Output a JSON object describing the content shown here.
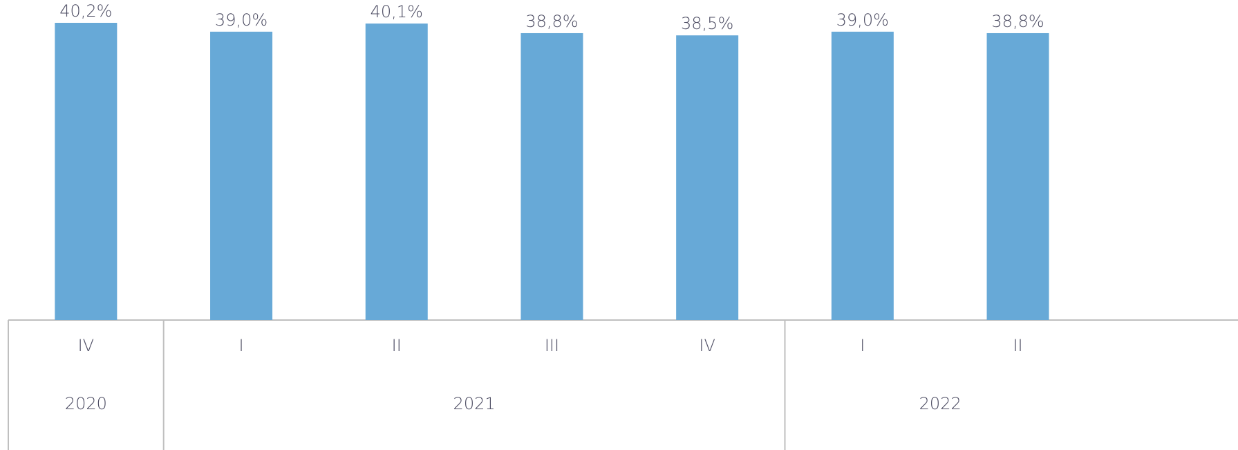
{
  "chart_data": {
    "type": "bar",
    "groups": [
      {
        "label": "2020",
        "categories": [
          "IV"
        ]
      },
      {
        "label": "2021",
        "categories": [
          "I",
          "II",
          "III",
          "IV"
        ]
      },
      {
        "label": "2022",
        "categories": [
          "I",
          "II"
        ]
      }
    ],
    "values": [
      40.2,
      39.0,
      40.1,
      38.8,
      38.5,
      39.0,
      38.8
    ],
    "value_labels": [
      "40,2%",
      "39,0%",
      "40,1%",
      "38,8%",
      "38,5%",
      "39,0%",
      "38,8%"
    ],
    "color": "#67a9d7"
  }
}
